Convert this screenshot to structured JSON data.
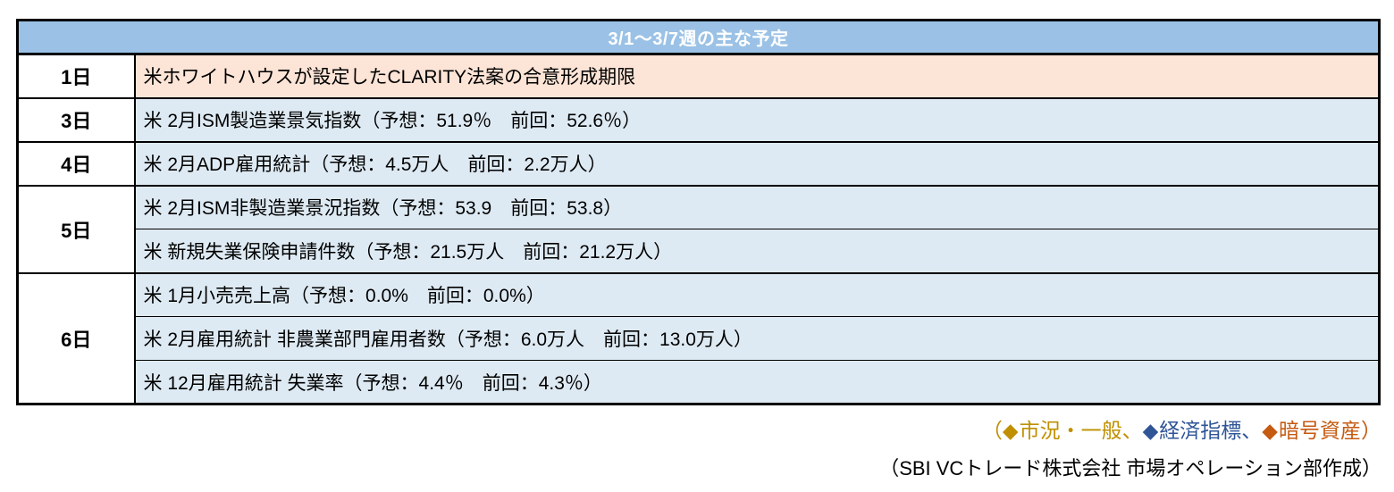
{
  "table": {
    "title": "3/1～3/7週の主な予定",
    "rows": [
      {
        "day": "1日",
        "highlight": true,
        "items": [
          "米ホワイトハウスが設定したCLARITY法案の合意形成期限"
        ]
      },
      {
        "day": "3日",
        "highlight": false,
        "items": [
          "米 2月ISM製造業景気指数（予想：51.9％　前回：52.6％）"
        ]
      },
      {
        "day": "4日",
        "highlight": false,
        "items": [
          "米 2月ADP雇用統計（予想：4.5万人　前回：2.2万人）"
        ]
      },
      {
        "day": "5日",
        "highlight": false,
        "items": [
          "米 2月ISM非製造業景況指数（予想：53.9　前回：53.8）",
          "米 新規失業保険申請件数（予想：21.5万人　前回：21.2万人）"
        ]
      },
      {
        "day": "6日",
        "highlight": false,
        "items": [
          "米 1月小売売上高（予想：0.0%　前回：0.0%）",
          "米 2月雇用統計 非農業部門雇用者数（予想：6.0万人　前回：13.0万人）",
          "米 12月雇用統計 失業率（予想：4.4％　前回：4.3％）"
        ]
      }
    ]
  },
  "legend": {
    "open_paren": "（",
    "close_paren": "）",
    "diamond_glyph": "◆",
    "items": [
      {
        "label": "市況・一般、",
        "color": "#BF8F00"
      },
      {
        "label": "経済指標、",
        "color": "#2F5597"
      },
      {
        "label": "暗号資産",
        "color": "#C55A11"
      }
    ]
  },
  "credit": "（SBI VCトレード株式会社 市場オペレーション部作成）",
  "colors": {
    "header_bg": "#9BC2E6",
    "header_text": "#FFFFFF",
    "highlight_bg": "#FCE4D6",
    "row_bg": "#DEEAF3",
    "day_bg": "#FFFFFF",
    "border_color": "#000000",
    "page_bg": "#FFFFFF",
    "text_color": "#000000"
  }
}
